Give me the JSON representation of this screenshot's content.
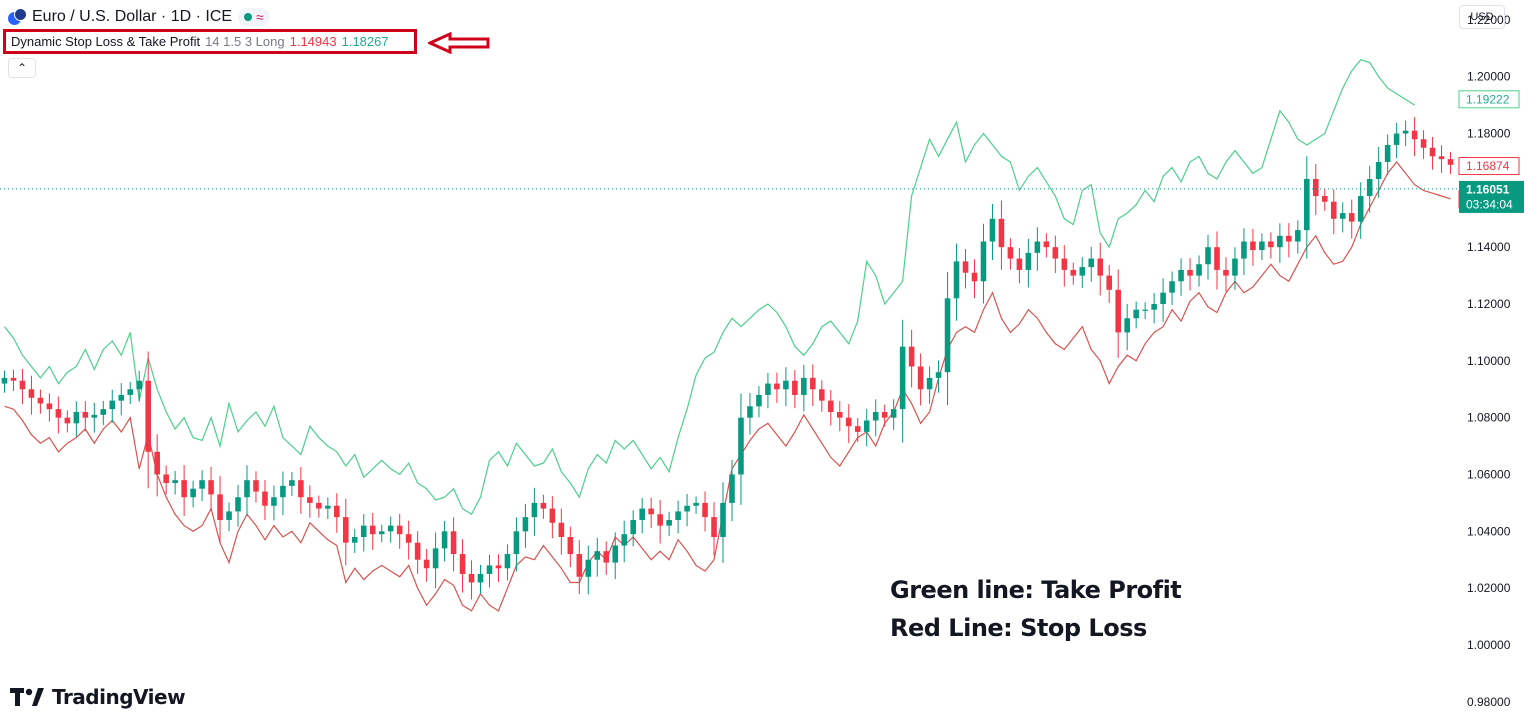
{
  "header": {
    "symbol": "Euro / U.S. Dollar · 1D · ICE",
    "symbol_icon": "euro-dollar-flag-icon",
    "status_icon": "market-open-dot-icon",
    "wave_icon": "delayed-data-wave-icon"
  },
  "indicator": {
    "name": "Dynamic Stop Loss & Take Profit",
    "params": "14 1.5 3 Long",
    "stop_loss_value": "1.14943",
    "take_profit_value": "1.18267",
    "highlight_color": "#d0021b"
  },
  "collapse_icon": "chevron-up-icon",
  "currency_button": "USD",
  "annotations": {
    "green_note": "Green line: Take Profit",
    "red_note": "Red Line: Stop Loss"
  },
  "branding": {
    "logo_text": "TradingView",
    "logo_icon": "tradingview-logo-icon"
  },
  "colors": {
    "up": "#089981",
    "down": "#f23645",
    "take_profit": "#4cd08c",
    "stop_loss": "#d9534f"
  },
  "chart_data": {
    "type": "candlestick",
    "y_range": [
      0.975,
      1.227
    ],
    "y_ticks": [
      "1.22000",
      "1.20000",
      "1.18000",
      "1.16000",
      "1.14000",
      "1.12000",
      "1.10000",
      "1.08000",
      "1.06000",
      "1.04000",
      "1.02000",
      "1.00000",
      "0.98000"
    ],
    "y_tick_values": [
      1.22,
      1.2,
      1.18,
      1.16,
      1.14,
      1.12,
      1.1,
      1.08,
      1.06,
      1.04,
      1.02,
      1.0,
      0.98
    ],
    "current_price": {
      "value": 1.16051,
      "label": "1.16051",
      "countdown": "03:34:04"
    },
    "take_profit_last": {
      "value": 1.19222,
      "label": "1.19222"
    },
    "stop_loss_last": {
      "value": 1.157,
      "label": "1.15700"
    },
    "mid_marker": {
      "value": 1.16874,
      "label": "1.16874"
    },
    "closes": [
      1.094,
      1.093,
      1.09,
      1.087,
      1.085,
      1.083,
      1.08,
      1.078,
      1.082,
      1.08,
      1.081,
      1.083,
      1.086,
      1.088,
      1.09,
      1.093,
      1.068,
      1.06,
      1.057,
      1.058,
      1.052,
      1.055,
      1.058,
      1.053,
      1.044,
      1.047,
      1.052,
      1.058,
      1.054,
      1.049,
      1.052,
      1.056,
      1.058,
      1.052,
      1.05,
      1.048,
      1.049,
      1.045,
      1.036,
      1.038,
      1.042,
      1.039,
      1.04,
      1.042,
      1.039,
      1.036,
      1.03,
      1.027,
      1.034,
      1.04,
      1.032,
      1.025,
      1.022,
      1.025,
      1.028,
      1.027,
      1.032,
      1.04,
      1.045,
      1.05,
      1.048,
      1.043,
      1.038,
      1.032,
      1.024,
      1.03,
      1.033,
      1.029,
      1.035,
      1.039,
      1.044,
      1.048,
      1.046,
      1.042,
      1.044,
      1.047,
      1.049,
      1.05,
      1.045,
      1.038,
      1.05,
      1.06,
      1.08,
      1.084,
      1.088,
      1.092,
      1.09,
      1.093,
      1.088,
      1.094,
      1.09,
      1.086,
      1.082,
      1.08,
      1.077,
      1.075,
      1.079,
      1.082,
      1.08,
      1.083,
      1.105,
      1.098,
      1.09,
      1.094,
      1.096,
      1.122,
      1.135,
      1.131,
      1.128,
      1.142,
      1.15,
      1.14,
      1.136,
      1.132,
      1.138,
      1.142,
      1.14,
      1.136,
      1.132,
      1.13,
      1.133,
      1.136,
      1.13,
      1.125,
      1.11,
      1.115,
      1.118,
      1.118,
      1.12,
      1.124,
      1.128,
      1.132,
      1.13,
      1.134,
      1.14,
      1.132,
      1.13,
      1.136,
      1.142,
      1.139,
      1.142,
      1.14,
      1.144,
      1.142,
      1.146,
      1.164,
      1.158,
      1.156,
      1.15,
      1.152,
      1.149,
      1.158,
      1.164,
      1.17,
      1.176,
      1.18,
      1.181,
      1.178,
      1.175,
      1.172,
      1.171,
      1.169
    ],
    "take_profit_line": [
      1.112,
      1.108,
      1.102,
      1.098,
      1.094,
      1.098,
      1.092,
      1.096,
      1.098,
      1.104,
      1.097,
      1.104,
      1.107,
      1.102,
      1.11,
      1.086,
      1.101,
      1.09,
      1.082,
      1.076,
      1.08,
      1.073,
      1.072,
      1.08,
      1.07,
      1.085,
      1.075,
      1.079,
      1.082,
      1.077,
      1.084,
      1.073,
      1.07,
      1.067,
      1.077,
      1.073,
      1.07,
      1.068,
      1.063,
      1.067,
      1.059,
      1.062,
      1.065,
      1.062,
      1.06,
      1.064,
      1.057,
      1.055,
      1.051,
      1.052,
      1.055,
      1.048,
      1.046,
      1.052,
      1.065,
      1.068,
      1.063,
      1.071,
      1.067,
      1.063,
      1.064,
      1.069,
      1.061,
      1.057,
      1.052,
      1.062,
      1.067,
      1.064,
      1.072,
      1.069,
      1.072,
      1.067,
      1.062,
      1.066,
      1.061,
      1.073,
      1.083,
      1.095,
      1.101,
      1.103,
      1.11,
      1.115,
      1.112,
      1.115,
      1.118,
      1.12,
      1.117,
      1.112,
      1.105,
      1.102,
      1.106,
      1.112,
      1.114,
      1.11,
      1.106,
      1.114,
      1.135,
      1.13,
      1.12,
      1.124,
      1.128,
      1.158,
      1.168,
      1.178,
      1.172,
      1.178,
      1.184,
      1.17,
      1.176,
      1.18,
      1.176,
      1.172,
      1.17,
      1.16,
      1.165,
      1.168,
      1.163,
      1.158,
      1.15,
      1.148,
      1.16,
      1.162,
      1.145,
      1.14,
      1.15,
      1.152,
      1.155,
      1.16,
      1.156,
      1.165,
      1.168,
      1.163,
      1.17,
      1.172,
      1.166,
      1.164,
      1.17,
      1.174,
      1.17,
      1.166,
      1.168,
      1.178,
      1.188,
      1.184,
      1.178,
      1.176,
      1.178,
      1.18,
      1.188,
      1.196,
      1.202,
      1.206,
      1.205,
      1.2,
      1.196,
      1.194,
      1.192,
      1.19
    ],
    "stop_loss_line": [
      1.084,
      1.083,
      1.079,
      1.074,
      1.071,
      1.073,
      1.068,
      1.071,
      1.073,
      1.076,
      1.071,
      1.076,
      1.079,
      1.075,
      1.08,
      1.062,
      1.074,
      1.06,
      1.052,
      1.046,
      1.042,
      1.04,
      1.042,
      1.048,
      1.036,
      1.029,
      1.04,
      1.046,
      1.042,
      1.037,
      1.042,
      1.038,
      1.04,
      1.036,
      1.043,
      1.04,
      1.037,
      1.035,
      1.022,
      1.027,
      1.023,
      1.026,
      1.028,
      1.026,
      1.024,
      1.028,
      1.02,
      1.014,
      1.018,
      1.023,
      1.021,
      1.014,
      1.012,
      1.018,
      1.014,
      1.012,
      1.02,
      1.028,
      1.031,
      1.03,
      1.035,
      1.031,
      1.027,
      1.022,
      1.022,
      1.029,
      1.033,
      1.03,
      1.038,
      1.035,
      1.038,
      1.034,
      1.03,
      1.033,
      1.03,
      1.037,
      1.033,
      1.028,
      1.026,
      1.03,
      1.046,
      1.062,
      1.067,
      1.072,
      1.076,
      1.078,
      1.074,
      1.07,
      1.075,
      1.081,
      1.076,
      1.071,
      1.066,
      1.063,
      1.068,
      1.073,
      1.075,
      1.07,
      1.078,
      1.082,
      1.09,
      1.085,
      1.078,
      1.082,
      1.094,
      1.104,
      1.11,
      1.112,
      1.11,
      1.118,
      1.124,
      1.115,
      1.11,
      1.113,
      1.118,
      1.115,
      1.11,
      1.106,
      1.104,
      1.108,
      1.112,
      1.104,
      1.1,
      1.092,
      1.098,
      1.102,
      1.1,
      1.106,
      1.11,
      1.112,
      1.118,
      1.114,
      1.121,
      1.124,
      1.119,
      1.117,
      1.124,
      1.128,
      1.124,
      1.126,
      1.13,
      1.134,
      1.13,
      1.128,
      1.134,
      1.14,
      1.144,
      1.138,
      1.134,
      1.135,
      1.14,
      1.148,
      1.154,
      1.16,
      1.166,
      1.17,
      1.166,
      1.162,
      1.16,
      1.159,
      1.158,
      1.157
    ]
  }
}
